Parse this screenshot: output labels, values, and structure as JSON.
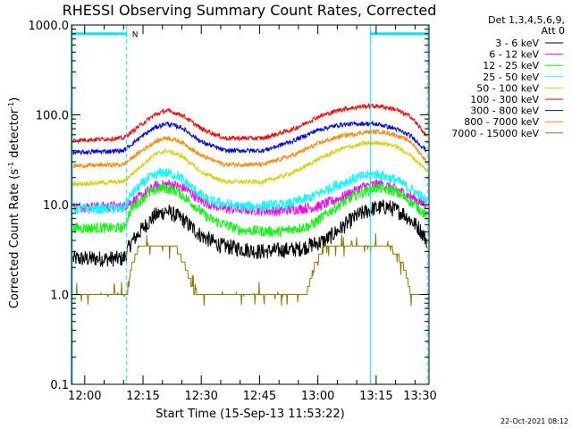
{
  "chart_data": {
    "type": "line",
    "title": "RHESSI Observing Summary Count Rates, Corrected",
    "xlabel": "Start Time (15-Sep-13 11:53:22)",
    "ylabel_main": "Corrected Count Rate (s",
    "ylabel_sup1": "-1",
    "ylabel_mid": " detector",
    "ylabel_sup2": "-1",
    "ylabel_end": ")",
    "yscale": "log",
    "ylim": [
      0.1,
      1000
    ],
    "xlim_minutes": [
      -3.4,
      88.6
    ],
    "y_ticks": [
      {
        "value": 0.1,
        "label": "0.1"
      },
      {
        "value": 1,
        "label": "1.0"
      },
      {
        "value": 10,
        "label": "10.0"
      },
      {
        "value": 100,
        "label": "100.0"
      },
      {
        "value": 1000,
        "label": "1000.0"
      }
    ],
    "x_ticks": [
      {
        "minutes": 0,
        "label": "12:00"
      },
      {
        "minutes": 15,
        "label": "12:15"
      },
      {
        "minutes": 30,
        "label": "12:30"
      },
      {
        "minutes": 45,
        "label": "12:45"
      },
      {
        "minutes": 60,
        "label": "13:00"
      },
      {
        "minutes": 75,
        "label": "13:15"
      },
      {
        "minutes": 90,
        "label": "13:30"
      }
    ],
    "legend_header": [
      "Det 1,3,4,5,6,9,",
      "Att 0"
    ],
    "legend_placement": "right",
    "flags": [
      {
        "label": "N",
        "start_min": -3.4,
        "end_min": 10.8,
        "level": 800,
        "color": "#00e8ff"
      },
      {
        "label": "",
        "start_min": 73.5,
        "end_min": 88.2,
        "level": 800,
        "color": "#00e8ff"
      }
    ],
    "flag_lines_minutes": [
      10.8,
      73.5,
      88.2
    ],
    "series": [
      {
        "name": "3 - 6 keV",
        "color": "#000000",
        "points": [
          [
            -3,
            2.5
          ],
          [
            10,
            2.5
          ],
          [
            12,
            3.8
          ],
          [
            15,
            5.5
          ],
          [
            18,
            7.5
          ],
          [
            21,
            8.5
          ],
          [
            25,
            7.0
          ],
          [
            30,
            4.5
          ],
          [
            35,
            3.5
          ],
          [
            45,
            3.0
          ],
          [
            55,
            3.2
          ],
          [
            62,
            4.0
          ],
          [
            66,
            5.5
          ],
          [
            70,
            7.5
          ],
          [
            74,
            9.0
          ],
          [
            78,
            9.5
          ],
          [
            82,
            8.0
          ],
          [
            86,
            5.5
          ],
          [
            88,
            4.0
          ]
        ]
      },
      {
        "name": "6 - 12 keV",
        "color": "#ff00ff",
        "points": [
          [
            -3,
            9.5
          ],
          [
            10,
            9.5
          ],
          [
            14,
            12
          ],
          [
            18,
            16
          ],
          [
            22,
            17
          ],
          [
            26,
            15
          ],
          [
            30,
            11
          ],
          [
            36,
            9.0
          ],
          [
            50,
            8.5
          ],
          [
            60,
            9.5
          ],
          [
            66,
            12
          ],
          [
            72,
            16
          ],
          [
            76,
            17
          ],
          [
            80,
            15
          ],
          [
            86,
            11
          ],
          [
            88,
            10
          ]
        ]
      },
      {
        "name": "12 - 25 keV",
        "color": "#00ff00",
        "points": [
          [
            -3,
            5.5
          ],
          [
            10,
            5.5
          ],
          [
            12,
            9.0
          ],
          [
            16,
            13
          ],
          [
            20,
            15.5
          ],
          [
            24,
            14
          ],
          [
            28,
            10
          ],
          [
            32,
            7.0
          ],
          [
            40,
            5.2
          ],
          [
            50,
            5.0
          ],
          [
            58,
            5.8
          ],
          [
            64,
            9.0
          ],
          [
            70,
            13
          ],
          [
            75,
            15.5
          ],
          [
            80,
            14
          ],
          [
            85,
            10
          ],
          [
            88,
            7.5
          ]
        ]
      },
      {
        "name": "25 - 50 keV",
        "color": "#00ffff",
        "points": [
          [
            -3,
            9.0
          ],
          [
            10,
            9.0
          ],
          [
            12,
            13
          ],
          [
            16,
            19
          ],
          [
            20,
            23
          ],
          [
            24,
            21
          ],
          [
            28,
            15
          ],
          [
            32,
            11
          ],
          [
            40,
            9.5
          ],
          [
            52,
            10
          ],
          [
            58,
            12
          ],
          [
            64,
            16
          ],
          [
            70,
            20
          ],
          [
            75,
            22
          ],
          [
            80,
            19
          ],
          [
            85,
            14
          ],
          [
            88,
            11
          ]
        ]
      },
      {
        "name": "50 - 100 keV",
        "color": "#d8d000",
        "points": [
          [
            -3,
            17
          ],
          [
            10,
            18
          ],
          [
            14,
            26
          ],
          [
            18,
            36
          ],
          [
            21,
            40
          ],
          [
            25,
            35
          ],
          [
            30,
            23
          ],
          [
            36,
            18
          ],
          [
            46,
            18
          ],
          [
            54,
            23
          ],
          [
            60,
            32
          ],
          [
            66,
            42
          ],
          [
            72,
            48
          ],
          [
            76,
            49
          ],
          [
            80,
            45
          ],
          [
            84,
            35
          ],
          [
            88,
            24
          ]
        ]
      },
      {
        "name": "100 - 300 keV",
        "color": "#ff0000",
        "points": [
          [
            -3,
            52
          ],
          [
            10,
            55
          ],
          [
            14,
            75
          ],
          [
            18,
            100
          ],
          [
            21,
            112
          ],
          [
            25,
            100
          ],
          [
            30,
            70
          ],
          [
            36,
            55
          ],
          [
            46,
            55
          ],
          [
            54,
            70
          ],
          [
            60,
            95
          ],
          [
            66,
            115
          ],
          [
            72,
            125
          ],
          [
            76,
            125
          ],
          [
            80,
            115
          ],
          [
            84,
            95
          ],
          [
            88,
            58
          ]
        ]
      },
      {
        "name": "300 - 800 keV",
        "color": "#0000ff",
        "points": [
          [
            -3,
            38
          ],
          [
            10,
            40
          ],
          [
            14,
            55
          ],
          [
            18,
            72
          ],
          [
            21,
            80
          ],
          [
            25,
            72
          ],
          [
            30,
            50
          ],
          [
            36,
            40
          ],
          [
            46,
            40
          ],
          [
            54,
            52
          ],
          [
            60,
            68
          ],
          [
            66,
            78
          ],
          [
            72,
            80
          ],
          [
            76,
            78
          ],
          [
            80,
            70
          ],
          [
            84,
            58
          ],
          [
            88,
            40
          ]
        ]
      },
      {
        "name": "800 - 7000 keV",
        "color": "#ff8800",
        "points": [
          [
            -3,
            27
          ],
          [
            10,
            28
          ],
          [
            14,
            38
          ],
          [
            18,
            50
          ],
          [
            21,
            56
          ],
          [
            25,
            50
          ],
          [
            30,
            35
          ],
          [
            36,
            28
          ],
          [
            46,
            28
          ],
          [
            54,
            36
          ],
          [
            60,
            48
          ],
          [
            66,
            58
          ],
          [
            72,
            64
          ],
          [
            76,
            65
          ],
          [
            80,
            60
          ],
          [
            84,
            50
          ],
          [
            88,
            30
          ]
        ]
      },
      {
        "name": "7000 - 15000 keV",
        "color": "#8b7d00",
        "points": [
          [
            -3,
            1.0
          ],
          [
            10,
            1.0
          ],
          [
            11,
            1.0
          ],
          [
            12,
            2.0
          ],
          [
            14,
            3.5
          ],
          [
            18,
            3.7
          ],
          [
            23,
            3.7
          ],
          [
            26,
            2.0
          ],
          [
            28,
            1.1
          ],
          [
            30,
            1.0
          ],
          [
            57,
            1.0
          ],
          [
            59,
            2.0
          ],
          [
            62,
            3.7
          ],
          [
            72,
            3.8
          ],
          [
            78,
            3.7
          ],
          [
            82,
            2.2
          ],
          [
            84,
            1.0
          ],
          [
            88,
            1.0
          ]
        ]
      }
    ],
    "grid": false
  },
  "timestamp": "22-Oct-2021 08:12"
}
